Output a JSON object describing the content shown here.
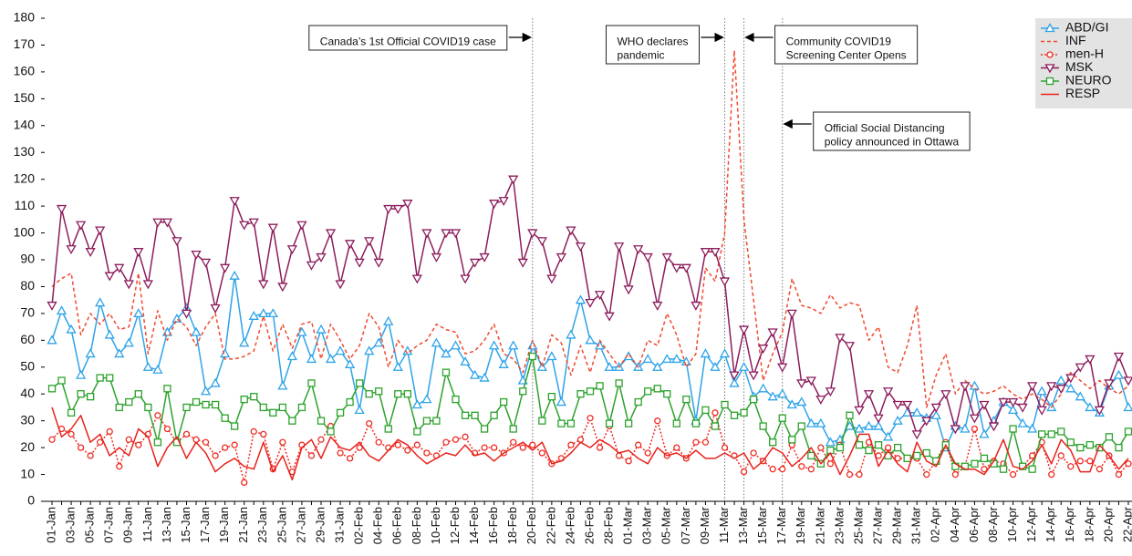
{
  "chart_data": {
    "type": "line",
    "categories": [
      "01-Jan",
      null,
      "03-Jan",
      null,
      "05-Jan",
      null,
      "07-Jan",
      null,
      "09-Jan",
      null,
      "11-Jan",
      null,
      "13-Jan",
      null,
      "15-Jan",
      null,
      "17-Jan",
      null,
      "19-Jan",
      null,
      "21-Jan",
      null,
      "23-Jan",
      null,
      "25-Jan",
      null,
      "27-Jan",
      null,
      "29-Jan",
      null,
      "31-Jan",
      null,
      "02-Feb",
      null,
      "04-Feb",
      null,
      "06-Feb",
      null,
      "08-Feb",
      null,
      "10-Feb",
      null,
      "12-Feb",
      null,
      "14-Feb",
      null,
      "16-Feb",
      null,
      "18-Feb",
      null,
      "20-Feb",
      null,
      "22-Feb",
      null,
      "24-Feb",
      null,
      "26-Feb",
      null,
      "28-Feb",
      null,
      "01-Mar",
      null,
      "03-Mar",
      null,
      "05-Mar",
      null,
      "07-Mar",
      null,
      "09-Mar",
      null,
      "11-Mar",
      null,
      "13-Mar",
      null,
      "15-Mar",
      null,
      "17-Mar",
      null,
      "19-Mar",
      null,
      "21-Mar",
      null,
      "23-Mar",
      null,
      "25-Mar",
      null,
      "27-Mar",
      null,
      "29-Mar",
      null,
      "31-Mar",
      null,
      "02-Apr",
      null,
      "04-Apr",
      null,
      "06-Apr",
      null,
      "08-Apr",
      null,
      "10-Apr",
      null,
      "12-Apr",
      null,
      "14-Apr",
      null,
      "16-Apr",
      null,
      "18-Apr",
      null,
      "20-Apr",
      null,
      "22-Apr"
    ],
    "series": [
      {
        "name": "ABD/GI",
        "color": "#2ea3e8",
        "marker": "triangle-up",
        "linestyle": "solid",
        "values": [
          60,
          71,
          64,
          47,
          55,
          74,
          62,
          55,
          59,
          70,
          50,
          49,
          63,
          68,
          72,
          63,
          41,
          44,
          55,
          84,
          59,
          69,
          70,
          70,
          43,
          54,
          63,
          53,
          64,
          53,
          56,
          51,
          34,
          56,
          59,
          67,
          50,
          56,
          36,
          38,
          59,
          55,
          58,
          52,
          47,
          46,
          58,
          51,
          58,
          45,
          58,
          50,
          54,
          37,
          62,
          75,
          60,
          58,
          50,
          50,
          54,
          50,
          53,
          50,
          53,
          53,
          52,
          30,
          55,
          50,
          55,
          44,
          50,
          39,
          42,
          39,
          40,
          36,
          37,
          29,
          29,
          22,
          23,
          28,
          27,
          28,
          28,
          24,
          30,
          33,
          33,
          31,
          32,
          20,
          28,
          27,
          43,
          25,
          30,
          37,
          34,
          29,
          27,
          41,
          35,
          45,
          42,
          39,
          35,
          33,
          43,
          47,
          35
        ]
      },
      {
        "name": "INF",
        "color": "#f04a30",
        "marker": "none",
        "linestyle": "dashed",
        "values": [
          80,
          83,
          85,
          62,
          70,
          66,
          70,
          64,
          65,
          85,
          55,
          71,
          60,
          68,
          65,
          58,
          65,
          70,
          53,
          53,
          54,
          56,
          69,
          56,
          66,
          57,
          66,
          67,
          53,
          66,
          60,
          53,
          58,
          70,
          65,
          50,
          60,
          55,
          58,
          60,
          66,
          64,
          63,
          55,
          56,
          60,
          66,
          55,
          53,
          48,
          60,
          50,
          62,
          59,
          47,
          58,
          48,
          60,
          55,
          50,
          55,
          50,
          60,
          58,
          70,
          62,
          50,
          55,
          87,
          82,
          100,
          168,
          105,
          75,
          45,
          55,
          63,
          83,
          73,
          72,
          70,
          77,
          72,
          74,
          73,
          60,
          65,
          50,
          48,
          58,
          73,
          35,
          47,
          55,
          40,
          45,
          42,
          40,
          41,
          43,
          40,
          38,
          40,
          38,
          35,
          40,
          48,
          45,
          42,
          45,
          42,
          40,
          43
        ]
      },
      {
        "name": "men-H",
        "color": "#ee2b22",
        "marker": "circle",
        "linestyle": "dotted",
        "values": [
          23,
          27,
          25,
          20,
          17,
          22,
          26,
          13,
          23,
          21,
          25,
          32,
          27,
          22,
          25,
          23,
          22,
          17,
          20,
          21,
          7,
          26,
          25,
          12,
          22,
          11,
          21,
          17,
          23,
          28,
          18,
          16,
          20,
          29,
          22,
          20,
          21,
          19,
          21,
          18,
          17,
          22,
          23,
          24,
          18,
          20,
          20,
          18,
          22,
          20,
          21,
          18,
          14,
          16,
          21,
          23,
          31,
          20,
          28,
          17,
          15,
          21,
          18,
          30,
          17,
          20,
          16,
          22,
          22,
          33,
          20,
          17,
          11,
          18,
          15,
          12,
          12,
          21,
          13,
          12,
          20,
          14,
          21,
          10,
          10,
          22,
          17,
          20,
          16,
          16,
          16,
          10,
          15,
          22,
          10,
          13,
          27,
          12,
          15,
          14,
          10,
          13,
          17,
          22,
          10,
          17,
          13,
          15,
          15,
          12,
          17,
          10,
          14
        ]
      },
      {
        "name": "MSK",
        "color": "#8c1c5c",
        "marker": "triangle-down",
        "linestyle": "solid",
        "values": [
          73,
          109,
          94,
          103,
          93,
          101,
          84,
          87,
          81,
          93,
          81,
          104,
          104,
          97,
          70,
          92,
          89,
          72,
          87,
          112,
          103,
          104,
          81,
          102,
          80,
          94,
          103,
          88,
          91,
          100,
          81,
          96,
          89,
          97,
          89,
          109,
          109,
          111,
          83,
          100,
          91,
          100,
          100,
          83,
          89,
          91,
          111,
          112,
          120,
          89,
          100,
          97,
          83,
          91,
          101,
          95,
          74,
          77,
          69,
          95,
          79,
          94,
          91,
          73,
          91,
          87,
          87,
          73,
          93,
          93,
          82,
          47,
          64,
          47,
          57,
          63,
          50,
          70,
          44,
          45,
          38,
          41,
          61,
          58,
          34,
          40,
          31,
          41,
          36,
          36,
          25,
          30,
          35,
          40,
          27,
          43,
          31,
          36,
          28,
          37,
          37,
          35,
          43,
          34,
          43,
          42,
          46,
          50,
          53,
          34,
          44,
          54,
          45
        ]
      },
      {
        "name": "NEURO",
        "color": "#2ca22c",
        "marker": "square",
        "linestyle": "solid",
        "values": [
          42,
          45,
          33,
          40,
          39,
          46,
          46,
          35,
          37,
          40,
          35,
          22,
          42,
          22,
          35,
          37,
          36,
          36,
          31,
          28,
          38,
          39,
          35,
          33,
          35,
          30,
          35,
          44,
          30,
          26,
          33,
          37,
          44,
          40,
          41,
          27,
          40,
          40,
          26,
          30,
          30,
          48,
          38,
          32,
          32,
          27,
          32,
          37,
          27,
          41,
          54,
          30,
          39,
          29,
          29,
          40,
          41,
          43,
          29,
          44,
          29,
          37,
          41,
          42,
          40,
          29,
          38,
          29,
          34,
          28,
          36,
          32,
          33,
          38,
          28,
          22,
          31,
          23,
          28,
          17,
          14,
          19,
          20,
          32,
          21,
          19,
          21,
          17,
          20,
          16,
          17,
          18,
          15,
          21,
          13,
          13,
          14,
          16,
          14,
          12,
          27,
          13,
          12,
          25,
          25,
          26,
          22,
          20,
          21,
          20,
          24,
          20,
          26
        ]
      },
      {
        "name": "RESP",
        "color": "#e8221c",
        "marker": "none",
        "linestyle": "solid",
        "values": [
          35,
          24,
          27,
          32,
          22,
          25,
          17,
          20,
          17,
          27,
          24,
          13,
          20,
          24,
          16,
          22,
          18,
          11,
          14,
          16,
          13,
          12,
          22,
          11,
          17,
          8,
          20,
          23,
          16,
          24,
          20,
          19,
          22,
          17,
          15,
          19,
          23,
          21,
          17,
          14,
          16,
          18,
          17,
          21,
          17,
          18,
          15,
          18,
          20,
          22,
          19,
          22,
          14,
          15,
          18,
          22,
          20,
          23,
          21,
          18,
          19,
          16,
          14,
          20,
          17,
          18,
          16,
          19,
          16,
          16,
          18,
          16,
          18,
          12,
          15,
          20,
          18,
          13,
          16,
          20,
          14,
          18,
          10,
          17,
          25,
          25,
          13,
          19,
          14,
          11,
          22,
          15,
          13,
          21,
          14,
          12,
          12,
          10,
          15,
          23,
          13,
          12,
          15,
          21,
          14,
          23,
          19,
          11,
          11,
          21,
          17,
          12,
          16
        ]
      }
    ],
    "ylim": [
      0,
      180
    ],
    "yticks": [
      0,
      10,
      20,
      30,
      40,
      50,
      60,
      70,
      80,
      90,
      100,
      110,
      120,
      130,
      140,
      150,
      160,
      170,
      180
    ],
    "grid": false,
    "legend": "top-right",
    "annotations": [
      {
        "x": "20-Feb",
        "text": [
          "Canada’s 1st Official COVID19 case"
        ],
        "side": "left",
        "row": "top"
      },
      {
        "x": "11-Mar",
        "text": [
          "WHO declares",
          "pandemic"
        ],
        "side": "left",
        "row": "top"
      },
      {
        "x": "13-Mar",
        "text": [
          "Community COVID19",
          "Screening Center Opens"
        ],
        "side": "right",
        "row": "top"
      },
      {
        "x": "17-Mar",
        "text": [
          "Official Social Distancing",
          "policy announced in Ottawa"
        ],
        "side": "right",
        "row": "middle"
      }
    ]
  }
}
